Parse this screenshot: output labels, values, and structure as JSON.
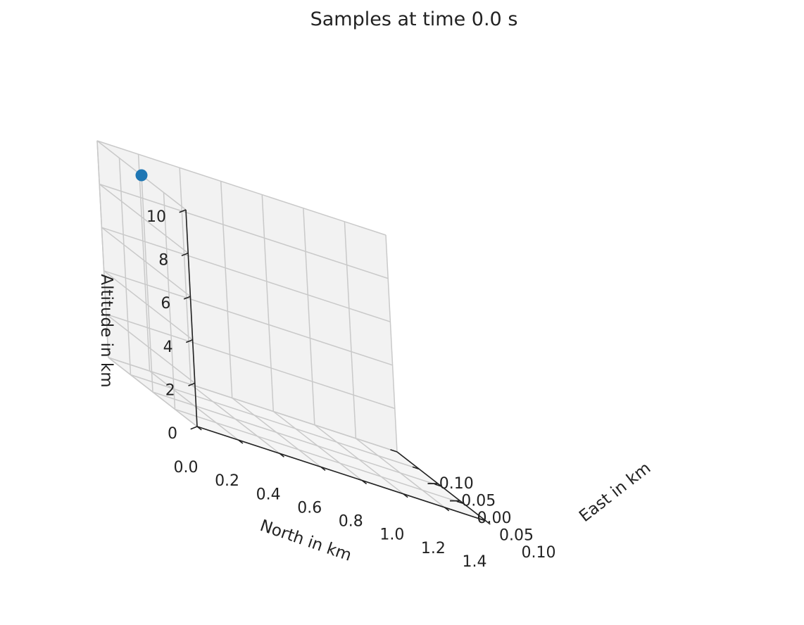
{
  "chart_data": {
    "type": "scatter",
    "projection": "3d",
    "title": "Samples at time 0.0 s",
    "xlabel": "North in km",
    "ylabel": "East in km",
    "zlabel": "Altitude in km",
    "x_ticks": [
      "0.0",
      "0.2",
      "0.4",
      "0.6",
      "0.8",
      "1.0",
      "1.2",
      "1.4"
    ],
    "y_ticks": [
      "−0.10",
      "−0.05",
      "0.00",
      "0.05",
      "0.10"
    ],
    "z_ticks": [
      "0",
      "2",
      "4",
      "6",
      "8",
      "10"
    ],
    "xlim": [
      0,
      1.4
    ],
    "ylim": [
      -0.1,
      0.1
    ],
    "zlim": [
      0,
      10
    ],
    "grid": true,
    "points": [
      {
        "x": 0.0,
        "y": 0.0,
        "z": 10.0
      }
    ],
    "colors": {
      "point": "#1f77b4"
    }
  }
}
